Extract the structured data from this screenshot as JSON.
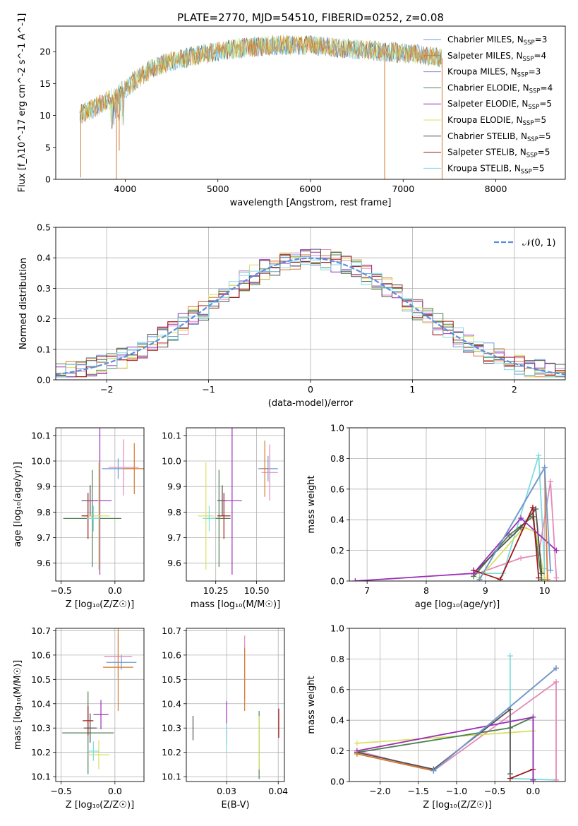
{
  "figure_title": "PLATE=2770, MJD=54510, FIBERID=0252, z=0.08",
  "colors": {
    "c_miles": "#6b9ad6",
    "s_miles": "#e08070",
    "k_miles": "#9080c0",
    "c_elodie": "#4e8050",
    "s_elodie": "#9a30b8",
    "k_elodie": "#d8e060",
    "c_stelib": "#505050",
    "s_stelib": "#a01818",
    "k_stelib": "#80dce0",
    "orange": "#d57a30",
    "pink": "#e48ab8",
    "gaussian": "#5a8ee0"
  },
  "chart_data": [
    {
      "id": "spectrum",
      "type": "line",
      "title": "",
      "xlabel": "wavelength [Angstrom, rest frame]",
      "ylabel": "Flux [f_λ10^-17 erg cm^-2 s^-1 A^-1]",
      "xlim": [
        3250,
        8750
      ],
      "ylim": [
        0,
        24
      ],
      "xticks": [
        4000,
        5000,
        6000,
        7000,
        8000
      ],
      "yticks": [
        0,
        5,
        10,
        15,
        20
      ],
      "legend_position": "right",
      "legend": [
        {
          "label": "Chabrier MILES, N",
          "sub": "SSP",
          "tail": "=3",
          "color": "#6b9ad6"
        },
        {
          "label": "Salpeter MILES, N",
          "sub": "SSP",
          "tail": "=4",
          "color": "#d57a30"
        },
        {
          "label": "Kroupa MILES, N",
          "sub": "SSP",
          "tail": "=3",
          "color": "#9080c0"
        },
        {
          "label": "Chabrier ELODIE, N",
          "sub": "SSP",
          "tail": "=4",
          "color": "#4e8050"
        },
        {
          "label": "Salpeter ELODIE, N",
          "sub": "SSP",
          "tail": "=5",
          "color": "#9a30b8"
        },
        {
          "label": "Kroupa ELODIE, N",
          "sub": "SSP",
          "tail": "=5",
          "color": "#d8e060"
        },
        {
          "label": "Chabrier STELIB, N",
          "sub": "SSP",
          "tail": "=5",
          "color": "#505050"
        },
        {
          "label": "Salpeter STELIB, N",
          "sub": "SSP",
          "tail": "=5",
          "color": "#a01818"
        },
        {
          "label": "Kroupa STELIB, N",
          "sub": "SSP",
          "tail": "=5",
          "color": "#80dce0"
        }
      ],
      "continuum": [
        [
          3500,
          10
        ],
        [
          3700,
          11.5
        ],
        [
          3900,
          13
        ],
        [
          4100,
          15.5
        ],
        [
          4300,
          17.5
        ],
        [
          4500,
          18.5
        ],
        [
          4800,
          19.5
        ],
        [
          5200,
          20.5
        ],
        [
          5600,
          21
        ],
        [
          6000,
          21
        ],
        [
          6400,
          20.5
        ],
        [
          6800,
          20
        ],
        [
          7200,
          19.5
        ],
        [
          7400,
          19
        ]
      ],
      "spikes": [
        [
          3520,
          0.3
        ],
        [
          3905,
          0
        ],
        [
          3935,
          4.5
        ],
        [
          6800,
          0
        ],
        [
          7420,
          0
        ]
      ]
    },
    {
      "id": "residuals",
      "type": "histogram",
      "title": "",
      "xlabel": "(data-model)/error",
      "ylabel": "Normed distribution",
      "xlim": [
        -2.5,
        2.5
      ],
      "ylim": [
        0,
        0.5
      ],
      "xticks": [
        -2,
        -1,
        0,
        1,
        2
      ],
      "yticks": [
        0.0,
        0.1,
        0.2,
        0.3,
        0.4,
        0.5
      ],
      "bin_width": 0.1,
      "grid": true,
      "legend": [
        {
          "label": "𝒩(0, 1)",
          "color": "#5a8ee0",
          "style": "dashed"
        }
      ],
      "legend_position": "top-right"
    },
    {
      "id": "age_vs_Z",
      "type": "scatter",
      "xlabel": "Z [log₁₀(Z/Z☉)]",
      "ylabel": "age  [log₁₀(age/yr)]",
      "xlim": [
        -0.55,
        0.27
      ],
      "ylim": [
        9.53,
        10.13
      ],
      "xticks": [
        -0.5,
        0.0
      ],
      "xticklabels": [
        "−0.5",
        "0.0"
      ],
      "yticks": [
        9.6,
        9.7,
        9.8,
        9.9,
        10.0,
        10.1
      ],
      "grid": true,
      "points": [
        {
          "x": 0.03,
          "y": 9.97,
          "xerr": 0.15,
          "yerr": 0.04,
          "color": "#6b9ad6"
        },
        {
          "x": 0.08,
          "y": 9.975,
          "xerr": 0.14,
          "yerr": 0.11,
          "color": "#e48ab8"
        },
        {
          "x": 0.18,
          "y": 9.97,
          "xerr": 0.1,
          "yerr": 0.1,
          "color": "#d57a30"
        },
        {
          "x": -0.21,
          "y": 9.775,
          "xerr": 0.27,
          "yerr": 0.19,
          "color": "#4e8050"
        },
        {
          "x": -0.23,
          "y": 9.845,
          "xerr": 0.08,
          "yerr": 0.06,
          "color": "#505050"
        },
        {
          "x": -0.25,
          "y": 9.785,
          "xerr": 0.06,
          "yerr": 0.09,
          "color": "#a01818"
        },
        {
          "x": -0.14,
          "y": 9.845,
          "xerr": 0.11,
          "yerr": 0.29,
          "color": "#9a30b8"
        },
        {
          "x": -0.15,
          "y": 9.785,
          "xerr": 0.1,
          "yerr": 0.21,
          "color": "#d8e060"
        },
        {
          "x": -0.2,
          "y": 9.775,
          "xerr": 0.06,
          "yerr": 0.05,
          "color": "#80dce0"
        }
      ]
    },
    {
      "id": "age_vs_mass",
      "type": "scatter",
      "xlabel": "mass [log₁₀(M/M☉)]",
      "ylabel": "",
      "xlim": [
        10.07,
        10.67
      ],
      "ylim": [
        9.53,
        10.13
      ],
      "xticks": [
        10.25,
        10.5
      ],
      "xticklabels": [
        "10.25",
        "10.50"
      ],
      "yticks": [
        9.6,
        9.7,
        9.8,
        9.9,
        10.0,
        10.1
      ],
      "grid": true,
      "points": [
        {
          "x": 10.57,
          "y": 9.97,
          "xerr": 0.06,
          "yerr": 0.05,
          "color": "#6b9ad6"
        },
        {
          "x": 10.58,
          "y": 9.955,
          "xerr": 0.05,
          "yerr": 0.11,
          "color": "#e48ab8"
        },
        {
          "x": 10.55,
          "y": 9.97,
          "xerr": 0.02,
          "yerr": 0.11,
          "color": "#d57a30"
        },
        {
          "x": 10.27,
          "y": 9.775,
          "xerr": 0.07,
          "yerr": 0.19,
          "color": "#4e8050"
        },
        {
          "x": 10.29,
          "y": 9.845,
          "xerr": 0.03,
          "yerr": 0.06,
          "color": "#505050"
        },
        {
          "x": 10.3,
          "y": 9.785,
          "xerr": 0.04,
          "yerr": 0.09,
          "color": "#a01818"
        },
        {
          "x": 10.35,
          "y": 9.845,
          "xerr": 0.06,
          "yerr": 0.29,
          "color": "#9a30b8"
        },
        {
          "x": 10.19,
          "y": 9.785,
          "xerr": 0.05,
          "yerr": 0.21,
          "color": "#d8e060"
        },
        {
          "x": 10.21,
          "y": 9.775,
          "xerr": 0.04,
          "yerr": 0.05,
          "color": "#80dce0"
        }
      ]
    },
    {
      "id": "weight_vs_age",
      "type": "line",
      "xlabel": "age  [log₁₀(age/yr)]",
      "ylabel": "mass weight",
      "xlim": [
        6.7,
        10.35
      ],
      "ylim": [
        0,
        1
      ],
      "xticks": [
        7,
        8,
        9,
        10
      ],
      "yticks": [
        0.0,
        0.2,
        0.4,
        0.6,
        0.8,
        1.0
      ],
      "grid": true,
      "series": [
        {
          "color": "#80dce0",
          "points": [
            [
              8.9,
              0.05
            ],
            [
              9.3,
              0.05
            ],
            [
              9.9,
              0.82
            ],
            [
              10.0,
              0.08
            ]
          ]
        },
        {
          "color": "#e48ab8",
          "points": [
            [
              8.8,
              0.04
            ],
            [
              9.6,
              0.15
            ],
            [
              9.9,
              0.17
            ],
            [
              10.1,
              0.65
            ],
            [
              10.2,
              0.02
            ]
          ]
        },
        {
          "color": "#d8e060",
          "points": [
            [
              8.9,
              0.02
            ],
            [
              9.65,
              0.35
            ],
            [
              9.85,
              0.32
            ],
            [
              10.0,
              0.02
            ]
          ]
        },
        {
          "color": "#4e8050",
          "points": [
            [
              8.8,
              0.03
            ],
            [
              9.4,
              0.3
            ],
            [
              9.8,
              0.42
            ],
            [
              9.95,
              0.01
            ]
          ]
        },
        {
          "color": "#505050",
          "points": [
            [
              8.8,
              0.05
            ],
            [
              9.6,
              0.35
            ],
            [
              9.85,
              0.47
            ],
            [
              9.95,
              0.05
            ]
          ]
        },
        {
          "color": "#a01818",
          "points": [
            [
              8.8,
              0.07
            ],
            [
              9.25,
              0.01
            ],
            [
              9.8,
              0.48
            ],
            [
              9.9,
              0.02
            ]
          ]
        },
        {
          "color": "#9a30b8",
          "points": [
            [
              6.8,
              0
            ],
            [
              8.8,
              0.05
            ],
            [
              9.6,
              0.41
            ],
            [
              10.2,
              0.2
            ]
          ]
        },
        {
          "color": "#d57a30",
          "points": [
            [
              8.9,
              0.01
            ],
            [
              10.0,
              0.74
            ],
            [
              10.05,
              0.01
            ]
          ]
        },
        {
          "color": "#6b9ad6",
          "points": [
            [
              8.9,
              0.01
            ],
            [
              10.0,
              0.74
            ],
            [
              10.1,
              0.07
            ]
          ]
        }
      ]
    },
    {
      "id": "mass_vs_Z",
      "type": "scatter",
      "xlabel": "Z [log₁₀(Z/Z☉)]",
      "ylabel": "mass [log₁₀(M/M☉)]",
      "xlim": [
        -0.55,
        0.27
      ],
      "ylim": [
        10.08,
        10.71
      ],
      "xticks": [
        -0.5,
        0.0
      ],
      "xticklabels": [
        "−0.5",
        "0.0"
      ],
      "yticks": [
        10.1,
        10.2,
        10.3,
        10.4,
        10.5,
        10.6,
        10.7
      ],
      "grid": true,
      "points": [
        {
          "x": 0.06,
          "y": 10.57,
          "xerr": 0.14,
          "yerr": 0.03,
          "color": "#6b9ad6"
        },
        {
          "x": 0.03,
          "y": 10.595,
          "xerr": 0.13,
          "yerr": 0.09,
          "color": "#e48ab8"
        },
        {
          "x": 0.03,
          "y": 10.55,
          "xerr": 0.14,
          "yerr": 0.18,
          "color": "#d57a30"
        },
        {
          "x": -0.25,
          "y": 10.28,
          "xerr": 0.24,
          "yerr": 0.17,
          "color": "#4e8050"
        },
        {
          "x": -0.23,
          "y": 10.3,
          "xerr": 0.06,
          "yerr": 0.06,
          "color": "#505050"
        },
        {
          "x": -0.25,
          "y": 10.33,
          "xerr": 0.05,
          "yerr": 0.06,
          "color": "#a01818"
        },
        {
          "x": -0.13,
          "y": 10.355,
          "xerr": 0.07,
          "yerr": 0.06,
          "color": "#9a30b8"
        },
        {
          "x": -0.15,
          "y": 10.19,
          "xerr": 0.1,
          "yerr": 0.06,
          "color": "#d8e060"
        },
        {
          "x": -0.2,
          "y": 10.205,
          "xerr": 0.05,
          "yerr": 0.04,
          "color": "#80dce0"
        }
      ]
    },
    {
      "id": "mass_vs_ebv",
      "type": "scatter",
      "xlabel": "E(B-V)",
      "ylabel": "",
      "xlim": [
        0.0222,
        0.0412
      ],
      "ylim": [
        10.08,
        10.71
      ],
      "xticks": [
        0.03,
        0.04
      ],
      "xticklabels": [
        "0.03",
        "0.04"
      ],
      "yticks": [
        10.1,
        10.2,
        10.3,
        10.4,
        10.5,
        10.6,
        10.7
      ],
      "grid": true,
      "points": [
        {
          "x": 0.0335,
          "y": 10.55,
          "xerr": 0,
          "yerr": 0.13,
          "color": "#e48ab8"
        },
        {
          "x": 0.0335,
          "y": 10.5,
          "xerr": 0,
          "yerr": 0.13,
          "color": "#d57a30"
        },
        {
          "x": 0.0235,
          "y": 10.3,
          "xerr": 0,
          "yerr": 0.05,
          "color": "#505050"
        },
        {
          "x": 0.03,
          "y": 10.32,
          "xerr": 0,
          "yerr": 0.09,
          "color": "#9a30b8"
        },
        {
          "x": 0.03,
          "y": 10.26,
          "xerr": 0,
          "yerr": 0.06,
          "color": "#80dce0"
        },
        {
          "x": 0.0363,
          "y": 10.23,
          "xerr": 0,
          "yerr": 0.14,
          "color": "#4e8050"
        },
        {
          "x": 0.0363,
          "y": 10.24,
          "xerr": 0,
          "yerr": 0.11,
          "color": "#d8e060"
        },
        {
          "x": 0.0401,
          "y": 10.32,
          "xerr": 0,
          "yerr": 0.06,
          "color": "#a01818"
        }
      ]
    },
    {
      "id": "weight_vs_Z",
      "type": "line",
      "xlabel": "Z [log₁₀(Z/Z☉)]",
      "ylabel": "mass weight",
      "xlim": [
        -2.4,
        0.42
      ],
      "ylim": [
        0,
        1
      ],
      "xticks": [
        -2.0,
        -1.5,
        -1.0,
        -0.5,
        0.0
      ],
      "xticklabels": [
        "−2.0",
        "−1.5",
        "−1.0",
        "−0.5",
        "0.0"
      ],
      "yticks": [
        0.0,
        0.2,
        0.4,
        0.6,
        0.8,
        1.0
      ],
      "grid": true,
      "series": [
        {
          "color": "#80dce0",
          "points": [
            [
              -0.3,
              0.82
            ],
            [
              -0.3,
              0.02
            ],
            [
              0.3,
              0.01
            ]
          ]
        },
        {
          "color": "#e48ab8",
          "points": [
            [
              -2.3,
              0.2
            ],
            [
              -1.3,
              0.07
            ],
            [
              0.3,
              0.65
            ],
            [
              0.3,
              0.01
            ]
          ]
        },
        {
          "color": "#d8e060",
          "points": [
            [
              -2.3,
              0.25
            ],
            [
              0,
              0.33
            ],
            [
              0,
              0.01
            ]
          ]
        },
        {
          "color": "#4e8050",
          "points": [
            [
              -2.3,
              0.19
            ],
            [
              -0.3,
              0.35
            ],
            [
              0,
              0.42
            ],
            [
              0,
              0.01
            ]
          ]
        },
        {
          "color": "#505050",
          "points": [
            [
              -2.3,
              0.19
            ],
            [
              -1.3,
              0.08
            ],
            [
              -0.3,
              0.47
            ],
            [
              -0.3,
              0.05
            ]
          ]
        },
        {
          "color": "#a01818",
          "points": [
            [
              -0.3,
              0.02
            ],
            [
              0,
              0.08
            ],
            [
              0,
              0.01
            ]
          ]
        },
        {
          "color": "#9a30b8",
          "points": [
            [
              -2.3,
              0.2
            ],
            [
              0,
              0.42
            ],
            [
              0,
              0.01
            ]
          ]
        },
        {
          "color": "#d57a30",
          "points": [
            [
              -2.3,
              0.18
            ],
            [
              -1.3,
              0.07
            ],
            [
              0.3,
              0.74
            ]
          ]
        },
        {
          "color": "#6b9ad6",
          "points": [
            [
              -1.3,
              0.07
            ],
            [
              0.3,
              0.74
            ]
          ]
        }
      ]
    }
  ]
}
